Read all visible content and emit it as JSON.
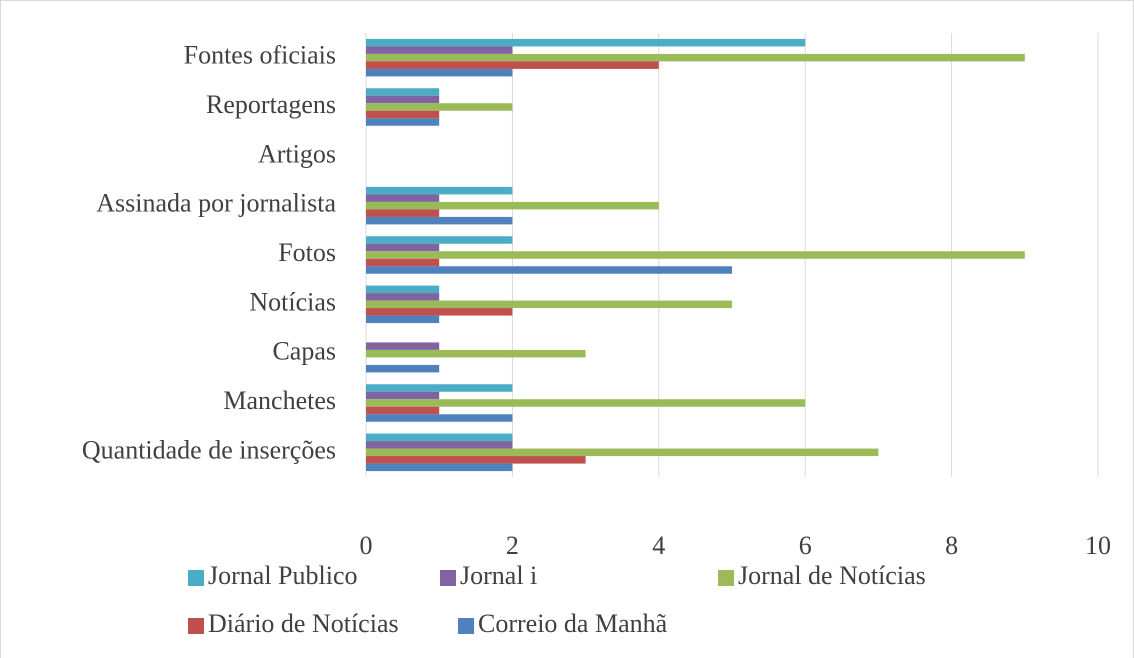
{
  "chart_data": {
    "type": "bar",
    "orientation": "horizontal",
    "categories": [
      "Quantidade de inserções",
      "Manchetes",
      "Capas",
      "Notícias",
      "Fotos",
      "Assinada por jornalista",
      "Artigos",
      "Reportagens",
      "Fontes oficiais"
    ],
    "series": [
      {
        "name": "Jornal Publico",
        "color": "#4bacc6",
        "values": [
          2,
          2,
          0,
          1,
          2,
          2,
          0,
          1,
          6
        ]
      },
      {
        "name": "Jornal i",
        "color": "#8064a2",
        "values": [
          2,
          1,
          1,
          1,
          1,
          1,
          0,
          1,
          2
        ]
      },
      {
        "name": "Jornal de Notícias",
        "color": "#9bbb59",
        "values": [
          7,
          6,
          3,
          5,
          9,
          4,
          0,
          2,
          9
        ]
      },
      {
        "name": "Diário de Notícias",
        "color": "#c0504d",
        "values": [
          3,
          1,
          0,
          2,
          1,
          1,
          0,
          1,
          4
        ]
      },
      {
        "name": "Correio da Manhã",
        "color": "#4f81bd",
        "values": [
          2,
          2,
          1,
          1,
          5,
          2,
          0,
          1,
          2
        ]
      }
    ],
    "xlim": [
      0,
      10
    ],
    "xticks": [
      0,
      2,
      4,
      6,
      8,
      10
    ],
    "grid": true,
    "legend": "bottom"
  }
}
